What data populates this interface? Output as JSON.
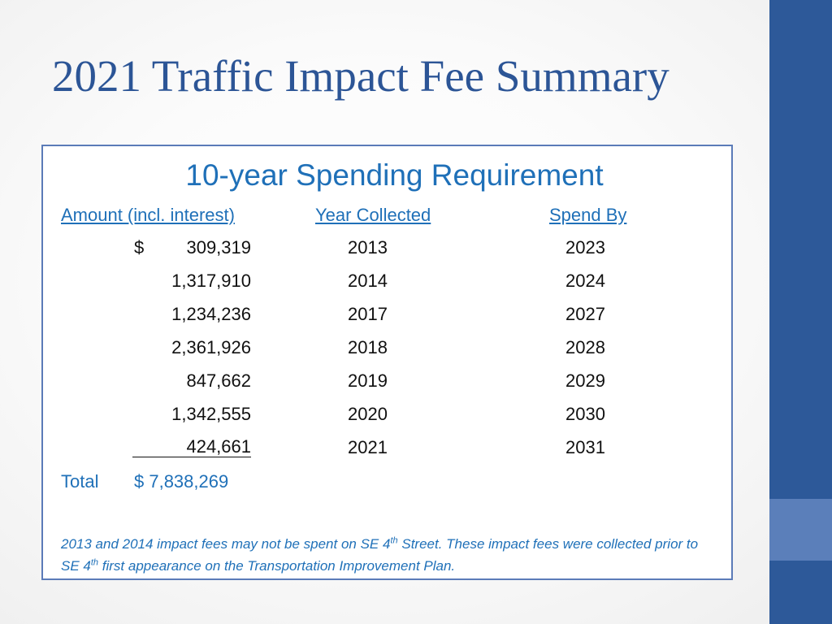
{
  "slide": {
    "title": "2021 Traffic Impact Fee Summary"
  },
  "table": {
    "heading": "10-year Spending Requirement",
    "columns": {
      "amount": "Amount (incl. interest)",
      "year_collected": "Year Collected",
      "spend_by": "Spend By"
    },
    "currency_symbol": "$",
    "rows": [
      {
        "amount": "309,319",
        "year_collected": "2013",
        "spend_by": "2023"
      },
      {
        "amount": "1,317,910",
        "year_collected": "2014",
        "spend_by": "2024"
      },
      {
        "amount": "1,234,236",
        "year_collected": "2017",
        "spend_by": "2027"
      },
      {
        "amount": "2,361,926",
        "year_collected": "2018",
        "spend_by": "2028"
      },
      {
        "amount": "847,662",
        "year_collected": "2019",
        "spend_by": "2029"
      },
      {
        "amount": "1,342,555",
        "year_collected": "2020",
        "spend_by": "2030"
      },
      {
        "amount": "424,661",
        "year_collected": "2021",
        "spend_by": "2031"
      }
    ],
    "total_label": "Total",
    "total_value": "$ 7,838,269"
  },
  "note": {
    "part1": "2013 and 2014 impact fees may not be spent on SE 4",
    "sup1": "th",
    "part2": " Street.  These impact fees were collected prior to SE 4",
    "sup2": "th",
    "part3": " first appearance on the Transportation Improvement Plan."
  },
  "colors": {
    "title": "#2c5596",
    "accent_text": "#1f70b8",
    "side_bar": "#2d5999",
    "side_bar_accent": "#5b7fba",
    "panel_border": "#5b7bb8"
  }
}
